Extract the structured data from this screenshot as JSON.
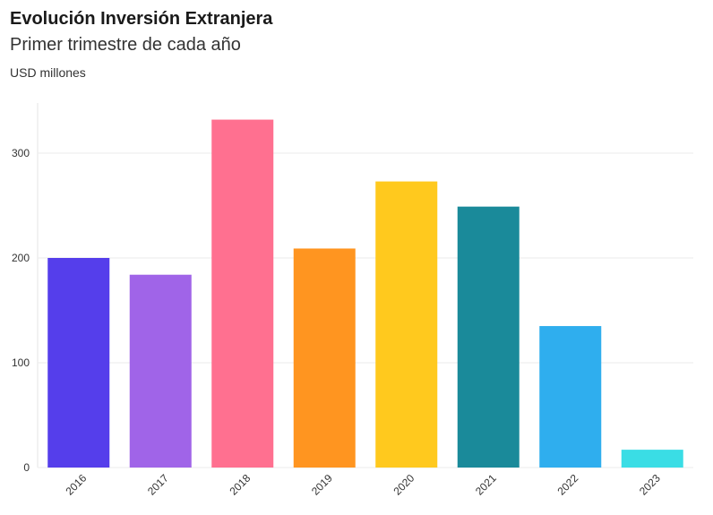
{
  "chart_data": {
    "type": "bar",
    "title": "Evolución Inversión Extranjera",
    "subtitle": "Primer trimestre de cada año",
    "ylabel": "USD millones",
    "xlabel": "",
    "categories": [
      "2016",
      "2017",
      "2018",
      "2019",
      "2020",
      "2021",
      "2022",
      "2023"
    ],
    "values": [
      200,
      184,
      332,
      209,
      273,
      249,
      135,
      17
    ],
    "colors": [
      "#553EEB",
      "#A064E8",
      "#FF7090",
      "#FF9520",
      "#FFC91E",
      "#1A8A9A",
      "#2FAEEE",
      "#3ADDE5"
    ],
    "yticks": [
      0,
      100,
      200,
      300
    ],
    "ylim": [
      0,
      350
    ],
    "grid": true,
    "legend": "none"
  }
}
